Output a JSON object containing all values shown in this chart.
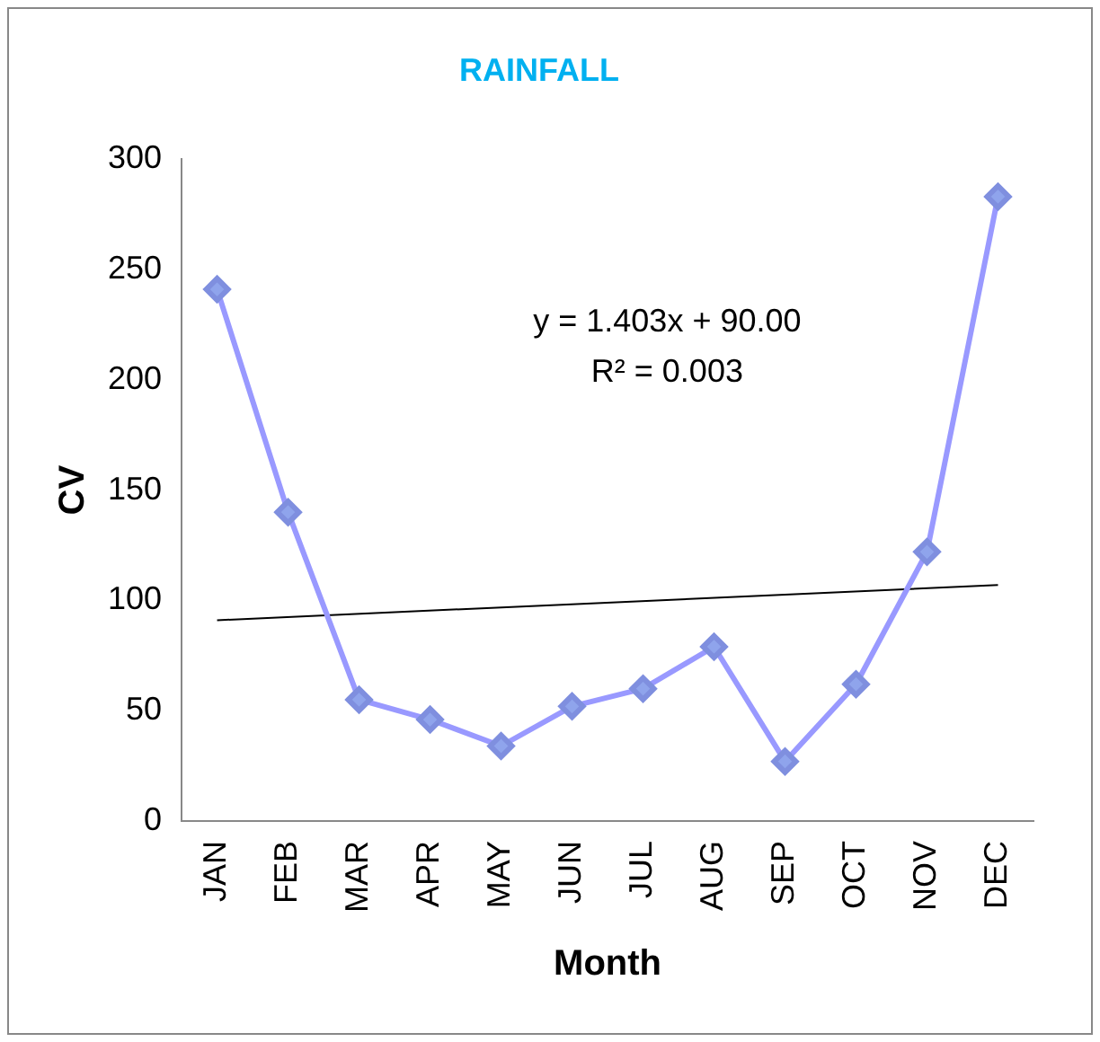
{
  "chart_data": {
    "type": "line",
    "title": "RAINFALL",
    "xlabel": "Month",
    "ylabel": "CV",
    "categories": [
      "JAN",
      "FEB",
      "MAR",
      "APR",
      "MAY",
      "JUN",
      "JUL",
      "AUG",
      "SEP",
      "OCT",
      "NOV",
      "DEC"
    ],
    "series": [
      {
        "color": "#9999ff",
        "values": [
          241,
          140,
          55,
          46,
          34,
          52,
          60,
          79,
          27,
          62,
          122,
          283
        ],
        "marker": "diamond"
      },
      {
        "type": "line",
        "color": "#000000",
        "x": [
          "JAN",
          "DEC"
        ],
        "values": [
          91,
          107
        ],
        "marker": "none"
      }
    ],
    "ylim": [
      0,
      300
    ],
    "yticks": [
      0,
      50,
      100,
      150,
      200,
      250,
      300
    ],
    "grid": false,
    "legend": false,
    "annotations": [
      "y = 1.403x + 90.00\nR² = 0.003"
    ]
  }
}
